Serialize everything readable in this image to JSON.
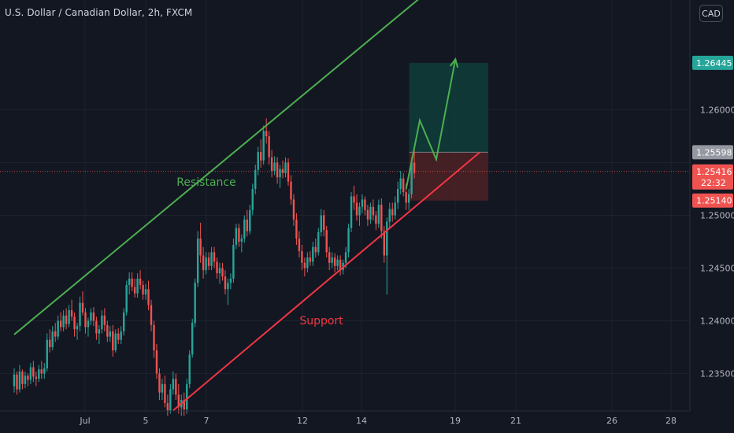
{
  "header": {
    "symbol_title": "U.S. Dollar / Canadian Dollar, 2h, FXCM"
  },
  "currency_button": "CAD",
  "colors": {
    "bg": "#131722",
    "grid": "#1e222d",
    "text": "#b2b5be",
    "up": "#26a69a",
    "down": "#ef5350",
    "resistance_line": "#4caf50",
    "support_line": "#f23645",
    "target_zone": "#0f3b38",
    "stop_zone": "#4a2023",
    "projection": "#4caf50",
    "crosshair_price": "#9598a1"
  },
  "chart_data": {
    "type": "candlestick",
    "title": "U.S. Dollar / Canadian Dollar, 2h, FXCM",
    "xlabel": "",
    "ylabel": "",
    "currency": "CAD",
    "grid": true,
    "ylim": [
      1.231,
      1.2695
    ],
    "x_tick_labels": [
      "Jul",
      "5",
      "7",
      "12",
      "14",
      "19",
      "21",
      "26",
      "28"
    ],
    "y_tick_labels": [
      "1.23500",
      "1.24000",
      "1.24500",
      "1.25000",
      "1.26000"
    ],
    "price_labels": [
      {
        "role": "target",
        "text": "1.26445",
        "value": 1.26445
      },
      {
        "role": "entry",
        "text": "1.25598",
        "value": 1.25598
      },
      {
        "role": "last",
        "text": "1.25416",
        "value": 1.25416,
        "countdown": "22:32"
      },
      {
        "role": "stop",
        "text": "1.25140",
        "value": 1.2514
      }
    ],
    "annotations": [
      {
        "text": "Resistance",
        "color": "#4caf50"
      },
      {
        "text": "Support",
        "color": "#f23645"
      }
    ],
    "trendlines": [
      {
        "name": "resistance",
        "from": [
          0,
          1.2387
        ],
        "to": [
          149,
          1.2708
        ]
      },
      {
        "name": "support",
        "from": [
          58,
          1.2315
        ],
        "to": [
          170,
          1.256
        ]
      }
    ],
    "position": {
      "type": "long",
      "entry": 1.25598,
      "target": 1.26445,
      "stop": 1.2514,
      "start_index": 145,
      "end_index": 173
    },
    "projection_path": [
      [
        143,
        1.2525
      ],
      [
        148,
        1.259
      ],
      [
        154,
        1.2553
      ],
      [
        161,
        1.2648
      ]
    ],
    "candles": [
      [
        1.2338,
        1.2355,
        1.2332,
        1.2349
      ],
      [
        1.2349,
        1.2352,
        1.233,
        1.2335
      ],
      [
        1.2335,
        1.2358,
        1.2332,
        1.2352
      ],
      [
        1.2352,
        1.2354,
        1.2335,
        1.234
      ],
      [
        1.234,
        1.2352,
        1.2336,
        1.2348
      ],
      [
        1.2348,
        1.235,
        1.2338,
        1.2344
      ],
      [
        1.2344,
        1.236,
        1.234,
        1.2356
      ],
      [
        1.2356,
        1.2362,
        1.2342,
        1.2347
      ],
      [
        1.2347,
        1.2352,
        1.2338,
        1.2345
      ],
      [
        1.2345,
        1.2358,
        1.2342,
        1.2354
      ],
      [
        1.2354,
        1.2362,
        1.2345,
        1.235
      ],
      [
        1.235,
        1.236,
        1.2345,
        1.2355
      ],
      [
        1.2355,
        1.2388,
        1.2352,
        1.2382
      ],
      [
        1.2382,
        1.2392,
        1.237,
        1.2375
      ],
      [
        1.2375,
        1.2395,
        1.2372,
        1.239
      ],
      [
        1.239,
        1.2398,
        1.238,
        1.2385
      ],
      [
        1.2385,
        1.2405,
        1.2382,
        1.24
      ],
      [
        1.24,
        1.2408,
        1.239,
        1.2394
      ],
      [
        1.2394,
        1.241,
        1.239,
        1.2405
      ],
      [
        1.2405,
        1.2412,
        1.2392,
        1.2397
      ],
      [
        1.2397,
        1.2415,
        1.2394,
        1.241
      ],
      [
        1.241,
        1.242,
        1.24,
        1.2404
      ],
      [
        1.2404,
        1.2408,
        1.2385,
        1.2392
      ],
      [
        1.2392,
        1.2398,
        1.2382,
        1.2395
      ],
      [
        1.2395,
        1.2423,
        1.239,
        1.2417
      ],
      [
        1.2417,
        1.2428,
        1.2405,
        1.2408
      ],
      [
        1.2408,
        1.2412,
        1.2388,
        1.2394
      ],
      [
        1.2394,
        1.2403,
        1.2385,
        1.24
      ],
      [
        1.24,
        1.2412,
        1.2396,
        1.2408
      ],
      [
        1.2408,
        1.2413,
        1.2395,
        1.24
      ],
      [
        1.24,
        1.2404,
        1.2382,
        1.2388
      ],
      [
        1.2388,
        1.2396,
        1.2378,
        1.2392
      ],
      [
        1.2392,
        1.241,
        1.2388,
        1.2405
      ],
      [
        1.2405,
        1.2412,
        1.239,
        1.2396
      ],
      [
        1.2396,
        1.24,
        1.238,
        1.2385
      ],
      [
        1.2385,
        1.2395,
        1.238,
        1.239
      ],
      [
        1.239,
        1.2396,
        1.2366,
        1.2372
      ],
      [
        1.2372,
        1.2392,
        1.237,
        1.2388
      ],
      [
        1.2388,
        1.2393,
        1.2378,
        1.2382
      ],
      [
        1.2382,
        1.2395,
        1.2378,
        1.239
      ],
      [
        1.239,
        1.2412,
        1.2386,
        1.2408
      ],
      [
        1.2408,
        1.2438,
        1.2405,
        1.2434
      ],
      [
        1.2434,
        1.2446,
        1.2425,
        1.244
      ],
      [
        1.244,
        1.2446,
        1.2428,
        1.2432
      ],
      [
        1.2432,
        1.244,
        1.2422,
        1.2426
      ],
      [
        1.2426,
        1.2445,
        1.2422,
        1.244
      ],
      [
        1.244,
        1.2448,
        1.243,
        1.2434
      ],
      [
        1.2434,
        1.2438,
        1.242,
        1.2425
      ],
      [
        1.2425,
        1.2435,
        1.242,
        1.243
      ],
      [
        1.243,
        1.2438,
        1.241,
        1.2415
      ],
      [
        1.2415,
        1.242,
        1.239,
        1.2396
      ],
      [
        1.2396,
        1.24,
        1.2365,
        1.2372
      ],
      [
        1.2372,
        1.2378,
        1.2345,
        1.235
      ],
      [
        1.235,
        1.2355,
        1.2325,
        1.2332
      ],
      [
        1.2332,
        1.2345,
        1.2325,
        1.234
      ],
      [
        1.234,
        1.2348,
        1.2318,
        1.2322
      ],
      [
        1.2322,
        1.233,
        1.231,
        1.2315
      ],
      [
        1.2315,
        1.234,
        1.2312,
        1.2335
      ],
      [
        1.2335,
        1.2352,
        1.233,
        1.2345
      ],
      [
        1.2345,
        1.235,
        1.2325,
        1.233
      ],
      [
        1.233,
        1.234,
        1.2312,
        1.2318
      ],
      [
        1.2318,
        1.233,
        1.231,
        1.2325
      ],
      [
        1.2325,
        1.2332,
        1.231,
        1.2316
      ],
      [
        1.2316,
        1.2345,
        1.2312,
        1.234
      ],
      [
        1.234,
        1.2372,
        1.2336,
        1.2368
      ],
      [
        1.2368,
        1.2402,
        1.2365,
        1.2398
      ],
      [
        1.2398,
        1.244,
        1.2394,
        1.2436
      ],
      [
        1.2436,
        1.2485,
        1.2432,
        1.2478
      ],
      [
        1.2478,
        1.2493,
        1.2455,
        1.2462
      ],
      [
        1.2462,
        1.247,
        1.244,
        1.2448
      ],
      [
        1.2448,
        1.2465,
        1.2444,
        1.246
      ],
      [
        1.246,
        1.2465,
        1.2448,
        1.2452
      ],
      [
        1.2452,
        1.247,
        1.2448,
        1.2465
      ],
      [
        1.2465,
        1.247,
        1.245,
        1.2456
      ],
      [
        1.2456,
        1.246,
        1.244,
        1.2445
      ],
      [
        1.2445,
        1.2455,
        1.2435,
        1.245
      ],
      [
        1.245,
        1.2455,
        1.2438,
        1.2442
      ],
      [
        1.2442,
        1.2448,
        1.2425,
        1.243
      ],
      [
        1.243,
        1.244,
        1.2415,
        1.2436
      ],
      [
        1.2436,
        1.2445,
        1.243,
        1.244
      ],
      [
        1.244,
        1.2478,
        1.2436,
        1.2472
      ],
      [
        1.2472,
        1.2492,
        1.2468,
        1.2488
      ],
      [
        1.2488,
        1.2492,
        1.247,
        1.2475
      ],
      [
        1.2475,
        1.2482,
        1.2465,
        1.2478
      ],
      [
        1.2478,
        1.25,
        1.2474,
        1.2496
      ],
      [
        1.2496,
        1.2505,
        1.248,
        1.2485
      ],
      [
        1.2485,
        1.251,
        1.2482,
        1.2505
      ],
      [
        1.2505,
        1.253,
        1.25,
        1.2525
      ],
      [
        1.2525,
        1.2548,
        1.252,
        1.2543
      ],
      [
        1.2543,
        1.2565,
        1.2538,
        1.256
      ],
      [
        1.256,
        1.2572,
        1.2545,
        1.2552
      ],
      [
        1.2552,
        1.2585,
        1.2548,
        1.258
      ],
      [
        1.258,
        1.2592,
        1.2568,
        1.2575
      ],
      [
        1.2575,
        1.258,
        1.2548,
        1.2555
      ],
      [
        1.2555,
        1.2562,
        1.2536,
        1.2542
      ],
      [
        1.2542,
        1.2556,
        1.2538,
        1.255
      ],
      [
        1.255,
        1.2555,
        1.253,
        1.2536
      ],
      [
        1.2536,
        1.2548,
        1.2526,
        1.2544
      ],
      [
        1.2544,
        1.2552,
        1.2535,
        1.254
      ],
      [
        1.254,
        1.2555,
        1.2536,
        1.255
      ],
      [
        1.255,
        1.2554,
        1.2528,
        1.2532
      ],
      [
        1.2532,
        1.2538,
        1.251,
        1.2515
      ],
      [
        1.2515,
        1.252,
        1.249,
        1.2496
      ],
      [
        1.2496,
        1.2502,
        1.2472,
        1.2478
      ],
      [
        1.2478,
        1.2485,
        1.246,
        1.2466
      ],
      [
        1.2466,
        1.2472,
        1.2448,
        1.2455
      ],
      [
        1.2455,
        1.246,
        1.2442,
        1.245
      ],
      [
        1.245,
        1.2465,
        1.2446,
        1.246
      ],
      [
        1.246,
        1.2466,
        1.2452,
        1.2456
      ],
      [
        1.2456,
        1.2475,
        1.2452,
        1.247
      ],
      [
        1.247,
        1.2478,
        1.246,
        1.2465
      ],
      [
        1.2465,
        1.2488,
        1.2462,
        1.2484
      ],
      [
        1.2484,
        1.2506,
        1.248,
        1.25
      ],
      [
        1.25,
        1.2505,
        1.248,
        1.2486
      ],
      [
        1.2486,
        1.249,
        1.246,
        1.2465
      ],
      [
        1.2465,
        1.247,
        1.2448,
        1.2455
      ],
      [
        1.2455,
        1.2465,
        1.245,
        1.246
      ],
      [
        1.246,
        1.2464,
        1.2446,
        1.2452
      ],
      [
        1.2452,
        1.2462,
        1.2448,
        1.2458
      ],
      [
        1.2458,
        1.2462,
        1.2443,
        1.2448
      ],
      [
        1.2448,
        1.2458,
        1.2444,
        1.2455
      ],
      [
        1.2455,
        1.247,
        1.245,
        1.2465
      ],
      [
        1.2465,
        1.2492,
        1.246,
        1.2488
      ],
      [
        1.2488,
        1.2522,
        1.2484,
        1.2518
      ],
      [
        1.2518,
        1.2528,
        1.2505,
        1.2512
      ],
      [
        1.2512,
        1.252,
        1.2495,
        1.25
      ],
      [
        1.25,
        1.2512,
        1.249,
        1.2508
      ],
      [
        1.2508,
        1.252,
        1.2502,
        1.2515
      ],
      [
        1.2515,
        1.2518,
        1.25,
        1.2505
      ],
      [
        1.2505,
        1.251,
        1.249,
        1.2496
      ],
      [
        1.2496,
        1.2512,
        1.2492,
        1.2508
      ],
      [
        1.2508,
        1.2515,
        1.2495,
        1.25
      ],
      [
        1.25,
        1.2504,
        1.2486,
        1.2492
      ],
      [
        1.2492,
        1.2515,
        1.2488,
        1.251
      ],
      [
        1.251,
        1.2516,
        1.2478,
        1.2485
      ],
      [
        1.2485,
        1.249,
        1.2455,
        1.2462
      ],
      [
        1.2462,
        1.2498,
        1.2425,
        1.2494
      ],
      [
        1.2494,
        1.2512,
        1.2488,
        1.2506
      ],
      [
        1.2506,
        1.2512,
        1.2494,
        1.25
      ],
      [
        1.25,
        1.2518,
        1.2496,
        1.2512
      ],
      [
        1.2512,
        1.2532,
        1.2506,
        1.2525
      ],
      [
        1.2525,
        1.2542,
        1.252,
        1.2535
      ],
      [
        1.2535,
        1.254,
        1.2518,
        1.2522
      ],
      [
        1.2522,
        1.253,
        1.2505,
        1.2512
      ],
      [
        1.2512,
        1.2525,
        1.2505,
        1.252
      ],
      [
        1.252,
        1.2555,
        1.2516,
        1.255
      ],
      [
        1.255,
        1.2562,
        1.2535,
        1.254
      ]
    ]
  }
}
